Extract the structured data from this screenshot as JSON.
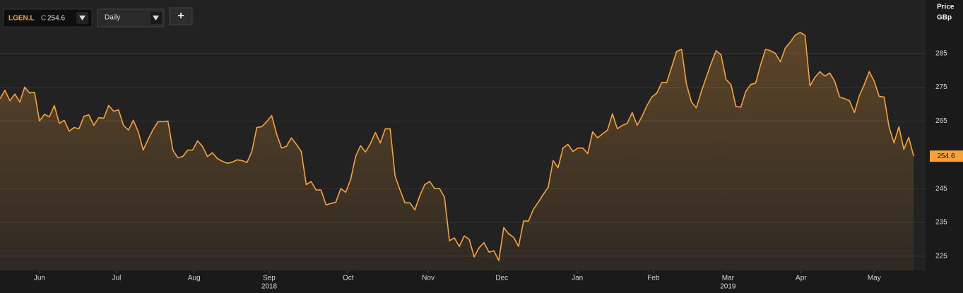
{
  "chart_data": {
    "type": "line",
    "close_prefix": "C",
    "interval": "Daily",
    "add_button": "+",
    "y_axis_label": "Price",
    "y_axis_unit": "GBp",
    "grid": true,
    "xlim": [
      0,
      187.4
    ],
    "ylim": [
      220.8,
      300.8
    ],
    "yticks": [
      225,
      235,
      245,
      265,
      275,
      285
    ],
    "xticks": [
      {
        "value": 8.0,
        "label": "Jun"
      },
      {
        "value": 23.6,
        "label": "Jul"
      },
      {
        "value": 39.3,
        "label": "Aug"
      },
      {
        "value": 54.5,
        "label": "Sep"
      },
      {
        "value": 70.5,
        "label": "Oct"
      },
      {
        "value": 86.7,
        "label": "Nov"
      },
      {
        "value": 101.6,
        "label": "Dec"
      },
      {
        "value": 116.9,
        "label": "Jan"
      },
      {
        "value": 132.3,
        "label": "Feb"
      },
      {
        "value": 147.4,
        "label": "Mar"
      },
      {
        "value": 162.2,
        "label": "Apr"
      },
      {
        "value": 177.0,
        "label": "May"
      }
    ],
    "year_ticks": [
      {
        "value": 54.5,
        "label": "2018"
      },
      {
        "value": 147.4,
        "label": "2019"
      }
    ],
    "series": [
      {
        "name": "LGEN.L",
        "color": "#f7a23a",
        "values": [
          271.6,
          274.1,
          271,
          273,
          270.6,
          275,
          273.3,
          273.5,
          265,
          267,
          266.2,
          269.6,
          264.3,
          265.2,
          262,
          263.1,
          262.7,
          266.4,
          266.8,
          263.7,
          266,
          265.8,
          269.6,
          267.9,
          268.3,
          263.7,
          262.3,
          265.2,
          261.8,
          256.4,
          259.6,
          262.5,
          264.8,
          264.8,
          265,
          256.4,
          254.1,
          254.5,
          256.4,
          256.4,
          259.1,
          257.5,
          254.5,
          255.6,
          253.9,
          253.1,
          252.5,
          252.8,
          253.5,
          253.3,
          252.7,
          256,
          263.1,
          263.3,
          264.8,
          266.6,
          261.2,
          257,
          257.5,
          260,
          258.1,
          256,
          246.2,
          247.1,
          244.6,
          244.6,
          240.2,
          240.6,
          241,
          245,
          243.9,
          247.7,
          254.5,
          257.7,
          255.8,
          258.3,
          261.6,
          258.5,
          262.7,
          262.7,
          248.7,
          244.6,
          240.8,
          240.8,
          238.7,
          242.9,
          246.2,
          247.1,
          245,
          245,
          242.5,
          229.6,
          230.4,
          227.9,
          231,
          230,
          224.8,
          227.5,
          229,
          226.2,
          226.6,
          223.7,
          233.5,
          231.6,
          230.6,
          227.9,
          235.4,
          235.4,
          238.9,
          241,
          243.3,
          245.4,
          253.3,
          251.2,
          257,
          258.1,
          256,
          257,
          257,
          255.4,
          261.8,
          260,
          261.2,
          262.3,
          267.1,
          262.7,
          263.7,
          264.3,
          267.5,
          263.7,
          266.4,
          269.6,
          272.1,
          273.3,
          276.4,
          276.4,
          281,
          285.6,
          286.2,
          275.8,
          270.6,
          268.9,
          273.7,
          277.9,
          282.1,
          285.8,
          284.6,
          277.3,
          275.8,
          269.3,
          269.1,
          273.7,
          275.8,
          276.2,
          281.6,
          286.2,
          285.8,
          285,
          282.5,
          286.6,
          288.3,
          290.4,
          291.2,
          290.4,
          275.4,
          277.9,
          279.6,
          278.3,
          279.2,
          276.8,
          272.1,
          271.6,
          271,
          267.5,
          272.5,
          275.8,
          279.6,
          276.8,
          272.3,
          272.1,
          263.3,
          258.5,
          263.3,
          256.6,
          260.2,
          254.6
        ]
      }
    ]
  }
}
